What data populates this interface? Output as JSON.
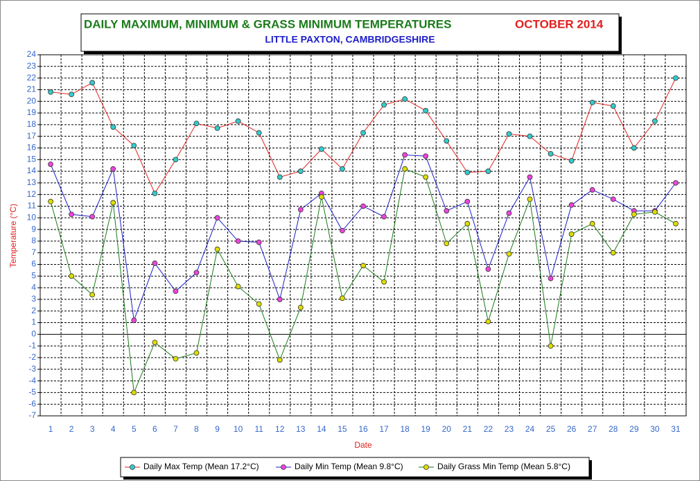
{
  "chart_data": {
    "type": "line",
    "title": "DAILY MAXIMUM, MINIMUM & GRASS MINIMUM TEMPERATURES",
    "title_month": "OCTOBER 2014",
    "subtitle": "LITTLE PAXTON, CAMBRIDGESHIRE",
    "y_label": "Temperature (°C)",
    "x_label": "Date",
    "categories": [
      "1",
      "2",
      "3",
      "4",
      "5",
      "6",
      "7",
      "8",
      "9",
      "10",
      "11",
      "12",
      "13",
      "14",
      "15",
      "16",
      "17",
      "18",
      "19",
      "20",
      "21",
      "22",
      "23",
      "24",
      "25",
      "26",
      "27",
      "28",
      "29",
      "30",
      "31"
    ],
    "series": [
      {
        "name": "Daily Max Temp (Mean 17.2°C)",
        "color": "#e0201e",
        "marker_color": "#33cccc",
        "values": [
          20.8,
          20.6,
          21.6,
          17.8,
          16.2,
          12.1,
          15.0,
          18.1,
          17.7,
          18.3,
          17.3,
          13.5,
          14.0,
          15.9,
          14.2,
          17.3,
          19.7,
          20.2,
          19.2,
          16.6,
          13.9,
          14.0,
          17.2,
          17.0,
          15.5,
          14.9,
          19.9,
          19.6,
          16.0,
          18.3,
          22.0
        ]
      },
      {
        "name": "Daily Min Temp (Mean 9.8°C)",
        "color": "#1c1cc8",
        "marker_color": "#ee44dd",
        "values": [
          14.6,
          10.3,
          10.1,
          14.2,
          1.2,
          6.1,
          3.7,
          5.3,
          10.0,
          8.0,
          7.9,
          3.0,
          10.7,
          12.1,
          8.9,
          11.0,
          10.1,
          15.4,
          15.3,
          10.6,
          11.4,
          5.6,
          10.4,
          13.5,
          4.8,
          11.1,
          12.4,
          11.6,
          10.6,
          10.6,
          13.0
        ]
      },
      {
        "name": "Daily Grass Min Temp (Mean 5.8°C)",
        "color": "#1a7a1a",
        "marker_color": "#dddd00",
        "values": [
          11.4,
          5.0,
          3.4,
          11.3,
          -5.0,
          -0.7,
          -2.1,
          -1.6,
          7.3,
          4.1,
          2.6,
          -2.2,
          2.3,
          11.8,
          3.1,
          5.9,
          4.5,
          14.2,
          13.5,
          7.8,
          9.5,
          1.1,
          6.9,
          11.6,
          -1.0,
          8.6,
          9.5,
          7.0,
          10.3,
          10.5,
          9.5
        ]
      }
    ],
    "ylim": [
      -7,
      24
    ],
    "yticks": [
      -7,
      -6,
      -5,
      -4,
      -3,
      -2,
      -1,
      0,
      1,
      2,
      3,
      4,
      5,
      6,
      7,
      8,
      9,
      10,
      11,
      12,
      13,
      14,
      15,
      16,
      17,
      18,
      19,
      20,
      21,
      22,
      23,
      24
    ],
    "grid": true
  }
}
